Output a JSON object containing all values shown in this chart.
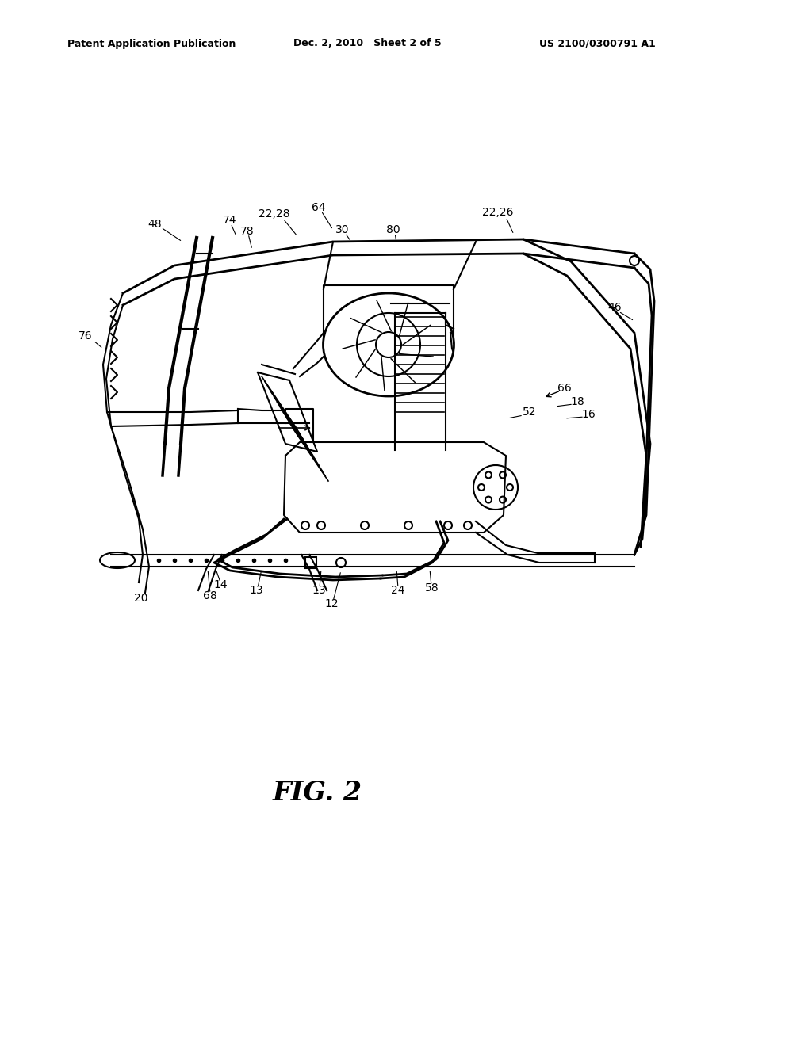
{
  "header_left": "Patent Application Publication",
  "header_mid": "Dec. 2, 2010   Sheet 2 of 5",
  "header_right": "US 2100/0300791 A1",
  "figure_label": "FIG. 2",
  "bg_color": "#ffffff",
  "line_color": "#000000",
  "gray_color": "#888888"
}
